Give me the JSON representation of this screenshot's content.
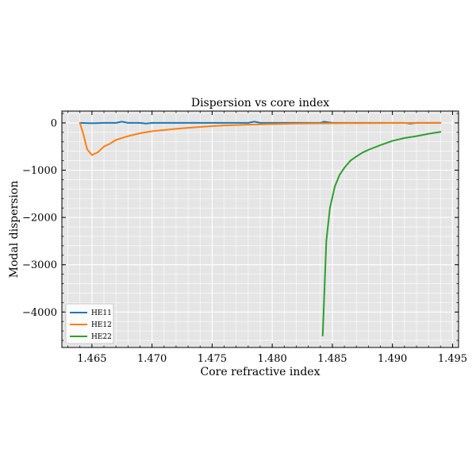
{
  "chart_data": {
    "type": "line",
    "title": "Dispersion vs core index",
    "xlabel": "Core refractive index",
    "ylabel": "Modal dispersion",
    "xlim": [
      1.4625,
      1.4955
    ],
    "ylim": [
      -4750,
      250
    ],
    "x_ticks": [
      1.465,
      1.47,
      1.475,
      1.48,
      1.485,
      1.49,
      1.495
    ],
    "x_tick_labels": [
      "1.465",
      "1.470",
      "1.475",
      "1.480",
      "1.485",
      "1.490",
      "1.495"
    ],
    "y_ticks": [
      0,
      -1000,
      -2000,
      -3000,
      -4000
    ],
    "y_tick_labels": [
      "0",
      "−1000",
      "−2000",
      "−3000",
      "−4000"
    ],
    "grid": true,
    "legend_position": "lower-left",
    "series": [
      {
        "name": "HE11",
        "color": "#1f77b4",
        "x": [
          1.464,
          1.465,
          1.466,
          1.467,
          1.4675,
          1.468,
          1.469,
          1.4695,
          1.47,
          1.472,
          1.474,
          1.476,
          1.477,
          1.478,
          1.4785,
          1.479,
          1.48,
          1.482,
          1.484,
          1.4843,
          1.485,
          1.487,
          1.489,
          1.491,
          1.4915,
          1.492,
          1.494
        ],
        "values": [
          0,
          -8,
          0,
          0,
          25,
          0,
          0,
          -15,
          0,
          0,
          0,
          0,
          0,
          0,
          25,
          0,
          0,
          0,
          0,
          25,
          0,
          0,
          0,
          0,
          -15,
          0,
          0
        ]
      },
      {
        "name": "HE12",
        "color": "#ff7f0e",
        "x": [
          1.464,
          1.4643,
          1.4646,
          1.465,
          1.4655,
          1.466,
          1.4665,
          1.467,
          1.468,
          1.469,
          1.47,
          1.471,
          1.472,
          1.473,
          1.474,
          1.475,
          1.476,
          1.477,
          1.478,
          1.479,
          1.48,
          1.481,
          1.482,
          1.483,
          1.484,
          1.485,
          1.486,
          1.487,
          1.488,
          1.489,
          1.49,
          1.491,
          1.492,
          1.493,
          1.494
        ],
        "values": [
          0,
          -250,
          -560,
          -680,
          -620,
          -500,
          -440,
          -360,
          -280,
          -220,
          -175,
          -150,
          -125,
          -105,
          -85,
          -68,
          -55,
          -45,
          -38,
          -30,
          -24,
          -20,
          -15,
          -12,
          -10,
          -8,
          -6,
          -5,
          -4,
          -3,
          -2,
          -1,
          0,
          0,
          0
        ]
      },
      {
        "name": "HE22",
        "color": "#2ca02c",
        "x": [
          1.4842,
          1.4845,
          1.4848,
          1.4852,
          1.4856,
          1.486,
          1.4865,
          1.487,
          1.4875,
          1.488,
          1.489,
          1.49,
          1.491,
          1.492,
          1.493,
          1.494
        ],
        "values": [
          -4500,
          -2500,
          -1800,
          -1350,
          -1100,
          -950,
          -800,
          -710,
          -630,
          -570,
          -470,
          -380,
          -320,
          -280,
          -230,
          -190
        ]
      }
    ]
  }
}
